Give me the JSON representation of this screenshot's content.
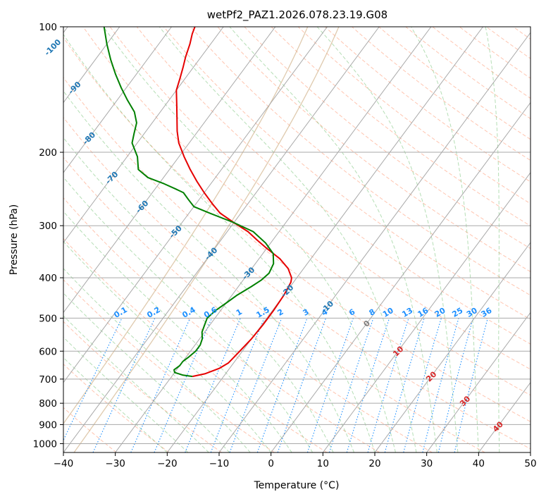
{
  "chart_data": {
    "type": "line",
    "subtype": "skew-t log-p diagram",
    "title": "wetPf2_PAZ1.2026.078.23.19.G08",
    "xlabel": "Temperature (°C)",
    "ylabel": "Pressure (hPa)",
    "xlim": [
      -40,
      50
    ],
    "ylim": [
      1050,
      100
    ],
    "y_scale": "log",
    "grid": true,
    "x_ticks": [
      -40,
      -30,
      -20,
      -10,
      0,
      10,
      20,
      30,
      40,
      50
    ],
    "y_ticks": [
      1000,
      900,
      800,
      700,
      600,
      500,
      400,
      300,
      200,
      100
    ],
    "isotherm_labels": [
      "-100",
      "-90",
      "-80",
      "-70",
      "-60",
      "-50",
      "-40",
      "-30",
      "-20",
      "-10",
      "0",
      "10",
      "20",
      "30",
      "40"
    ],
    "mixing_ratio_labels": [
      "0.1",
      "0.2",
      "0.4",
      "0.6",
      "1",
      "1.5",
      "2",
      "3",
      "4",
      "6",
      "8",
      "10",
      "13",
      "16",
      "20",
      "25",
      "30",
      "36"
    ],
    "mixing_ratio_values": [
      0.1,
      0.2,
      0.4,
      0.6,
      1,
      1.5,
      2,
      3,
      4,
      6,
      8,
      10,
      13,
      16,
      20,
      25,
      30,
      36
    ],
    "series": [
      {
        "role": "temperature",
        "color": "#e60000",
        "points": [
          [
            -26.0,
            690
          ],
          [
            -24.0,
            680
          ],
          [
            -22.0,
            660
          ],
          [
            -21.0,
            640
          ],
          [
            -20.5,
            600
          ],
          [
            -20.0,
            560
          ],
          [
            -19.8,
            520
          ],
          [
            -19.8,
            480
          ],
          [
            -20.0,
            440
          ],
          [
            -20.5,
            410
          ],
          [
            -21.0,
            400
          ],
          [
            -23.0,
            380
          ],
          [
            -26.0,
            360
          ],
          [
            -30.0,
            340
          ],
          [
            -33.0,
            325
          ],
          [
            -36.0,
            310
          ],
          [
            -40.0,
            295
          ],
          [
            -44.0,
            280
          ],
          [
            -47.0,
            265
          ],
          [
            -50.0,
            250
          ],
          [
            -53.0,
            235
          ],
          [
            -56.0,
            220
          ],
          [
            -59.0,
            205
          ],
          [
            -62.0,
            190
          ],
          [
            -64.0,
            178
          ],
          [
            -66.0,
            165
          ],
          [
            -68.0,
            153
          ],
          [
            -70.0,
            142
          ],
          [
            -71.0,
            133
          ],
          [
            -72.0,
            125
          ],
          [
            -73.0,
            118
          ],
          [
            -74.0,
            110
          ],
          [
            -75.0,
            104
          ],
          [
            -75.5,
            100
          ]
        ]
      },
      {
        "role": "dewpoint",
        "color": "#008000",
        "points": [
          [
            -26.0,
            690
          ],
          [
            -28.0,
            685
          ],
          [
            -30.0,
            675
          ],
          [
            -30.5,
            665
          ],
          [
            -30.0,
            650
          ],
          [
            -30.0,
            635
          ],
          [
            -29.5,
            620
          ],
          [
            -29.0,
            600
          ],
          [
            -29.0,
            580
          ],
          [
            -29.5,
            560
          ],
          [
            -30.5,
            540
          ],
          [
            -31.0,
            520
          ],
          [
            -31.5,
            500
          ],
          [
            -31.0,
            480
          ],
          [
            -30.0,
            460
          ],
          [
            -29.0,
            440
          ],
          [
            -27.5,
            420
          ],
          [
            -26.5,
            405
          ],
          [
            -26.0,
            390
          ],
          [
            -26.5,
            370
          ],
          [
            -28.0,
            350
          ],
          [
            -31.0,
            330
          ],
          [
            -35.0,
            310
          ],
          [
            -40.0,
            295
          ],
          [
            -46.0,
            280
          ],
          [
            -50.0,
            270
          ],
          [
            -52.0,
            260
          ],
          [
            -54.0,
            250
          ],
          [
            -56.0,
            245
          ],
          [
            -59.0,
            238
          ],
          [
            -63.0,
            230
          ],
          [
            -66.0,
            220
          ],
          [
            -68.0,
            205
          ],
          [
            -71.0,
            190
          ],
          [
            -72.0,
            180
          ],
          [
            -73.0,
            170
          ],
          [
            -75.0,
            160
          ],
          [
            -78.0,
            150
          ],
          [
            -81.0,
            140
          ],
          [
            -84.0,
            130
          ],
          [
            -87.0,
            120
          ],
          [
            -90.0,
            110
          ],
          [
            -93.0,
            100
          ]
        ]
      }
    ],
    "colors": {
      "temperature": "#e60000",
      "dewpoint": "#008000",
      "isotherm_label": "#1f77b4",
      "mixing_ratio": "#1e90ff",
      "dry_adiabat": "#ff7f50",
      "moist_adiabat": "#2ca02c",
      "lcl_curve": "#d2b48c",
      "isotherm_label_hot": "#d62728",
      "zero_label": "#7f7f7f"
    }
  }
}
